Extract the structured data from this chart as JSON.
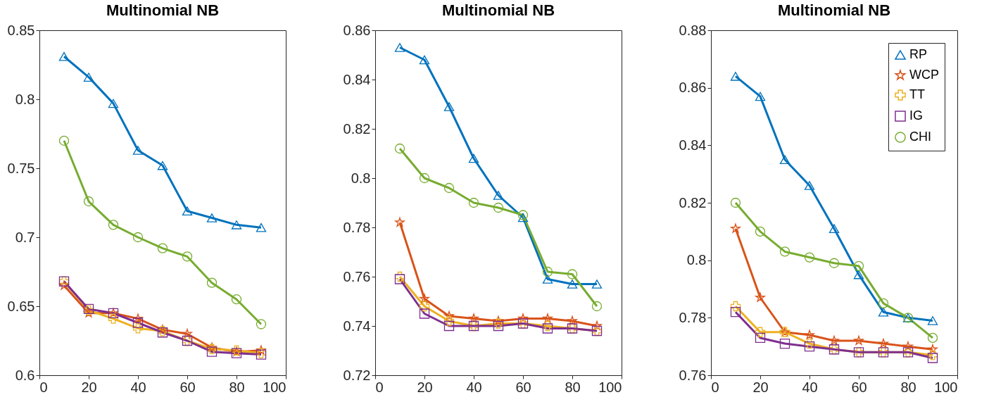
{
  "chart_data": [
    {
      "type": "line",
      "title": "Multinomial NB",
      "x": [
        10,
        20,
        30,
        40,
        50,
        60,
        70,
        80,
        90
      ],
      "xlim": [
        0,
        100
      ],
      "xticks": [
        0,
        20,
        40,
        60,
        80,
        100
      ],
      "ylim": [
        0.6,
        0.85
      ],
      "yticks": [
        0.6,
        0.65,
        0.7,
        0.75,
        0.8,
        0.85
      ],
      "grid": false,
      "series": [
        {
          "color": "#0072bd",
          "marker": "triangle",
          "values": [
            0.831,
            0.816,
            0.797,
            0.763,
            0.752,
            0.719,
            0.714,
            0.709,
            0.707
          ]
        },
        {
          "color": "#d95319",
          "marker": "star",
          "values": [
            0.665,
            0.645,
            0.645,
            0.641,
            0.633,
            0.63,
            0.62,
            0.617,
            0.618
          ]
        },
        {
          "color": "#edb120",
          "marker": "cross",
          "values": [
            0.668,
            0.647,
            0.641,
            0.634,
            0.632,
            0.625,
            0.619,
            0.618,
            0.616
          ]
        },
        {
          "color": "#7e2f8e",
          "marker": "square",
          "values": [
            0.668,
            0.648,
            0.645,
            0.638,
            0.631,
            0.625,
            0.617,
            0.616,
            0.615
          ]
        },
        {
          "color": "#77ac30",
          "marker": "circle",
          "values": [
            0.77,
            0.726,
            0.709,
            0.7,
            0.692,
            0.686,
            0.667,
            0.655,
            0.637
          ]
        }
      ]
    },
    {
      "type": "line",
      "title": "Multinomial NB",
      "x": [
        10,
        20,
        30,
        40,
        50,
        60,
        70,
        80,
        90
      ],
      "xlim": [
        0,
        100
      ],
      "xticks": [
        0,
        20,
        40,
        60,
        80,
        100
      ],
      "ylim": [
        0.72,
        0.86
      ],
      "yticks": [
        0.72,
        0.74,
        0.76,
        0.78,
        0.8,
        0.82,
        0.84,
        0.86
      ],
      "grid": false,
      "series": [
        {
          "color": "#0072bd",
          "marker": "triangle",
          "values": [
            0.853,
            0.848,
            0.829,
            0.808,
            0.793,
            0.784,
            0.759,
            0.757,
            0.757
          ]
        },
        {
          "color": "#d95319",
          "marker": "star",
          "values": [
            0.782,
            0.751,
            0.744,
            0.743,
            0.742,
            0.743,
            0.743,
            0.742,
            0.74
          ]
        },
        {
          "color": "#edb120",
          "marker": "cross",
          "values": [
            0.76,
            0.748,
            0.742,
            0.74,
            0.741,
            0.741,
            0.74,
            0.739,
            0.738
          ]
        },
        {
          "color": "#7e2f8e",
          "marker": "square",
          "values": [
            0.759,
            0.745,
            0.74,
            0.74,
            0.74,
            0.741,
            0.739,
            0.739,
            0.738
          ]
        },
        {
          "color": "#77ac30",
          "marker": "circle",
          "values": [
            0.812,
            0.8,
            0.796,
            0.79,
            0.788,
            0.785,
            0.762,
            0.761,
            0.748
          ]
        }
      ]
    },
    {
      "type": "line",
      "title": "Multinomial NB",
      "x": [
        10,
        20,
        30,
        40,
        50,
        60,
        70,
        80,
        90
      ],
      "xlim": [
        0,
        100
      ],
      "xticks": [
        0,
        20,
        40,
        60,
        80,
        100
      ],
      "ylim": [
        0.76,
        0.88
      ],
      "yticks": [
        0.76,
        0.78,
        0.8,
        0.82,
        0.84,
        0.86,
        0.88
      ],
      "grid": false,
      "legend": "top right",
      "series": [
        {
          "name": "RP",
          "color": "#0072bd",
          "marker": "triangle",
          "values": [
            0.864,
            0.857,
            0.835,
            0.826,
            0.811,
            0.795,
            0.782,
            0.78,
            0.779
          ]
        },
        {
          "name": "WCP",
          "color": "#d95319",
          "marker": "star",
          "values": [
            0.811,
            0.787,
            0.775,
            0.774,
            0.772,
            0.772,
            0.771,
            0.77,
            0.769
          ]
        },
        {
          "name": "TT",
          "color": "#edb120",
          "marker": "cross",
          "values": [
            0.784,
            0.775,
            0.775,
            0.771,
            0.769,
            0.768,
            0.768,
            0.768,
            0.767
          ]
        },
        {
          "name": "IG",
          "color": "#7e2f8e",
          "marker": "square",
          "values": [
            0.782,
            0.773,
            0.771,
            0.77,
            0.769,
            0.768,
            0.768,
            0.768,
            0.766
          ]
        },
        {
          "name": "CHI",
          "color": "#77ac30",
          "marker": "circle",
          "values": [
            0.82,
            0.81,
            0.803,
            0.801,
            0.799,
            0.798,
            0.785,
            0.78,
            0.773
          ]
        }
      ]
    }
  ]
}
